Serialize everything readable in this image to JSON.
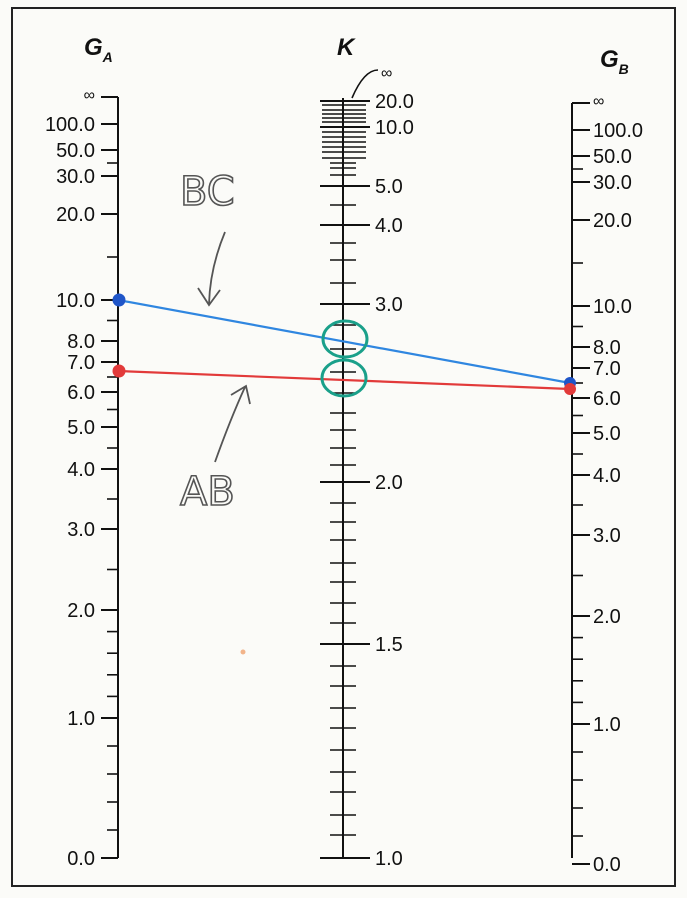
{
  "axes": {
    "ga": {
      "title": "G",
      "subscript": "A",
      "labels": [
        "∞",
        "100.0",
        "50.0",
        "30.0",
        "20.0",
        "10.0",
        "8.0",
        "7.0",
        "6.0",
        "5.0",
        "4.0",
        "3.0",
        "2.0",
        "1.0",
        "0.0"
      ]
    },
    "k": {
      "title": "K",
      "infinity_label": "∞",
      "labels": [
        "20.0",
        "10.0",
        "5.0",
        "4.0",
        "3.0",
        "2.0",
        "1.5",
        "1.0"
      ]
    },
    "gb": {
      "title": "G",
      "subscript": "B",
      "labels": [
        "∞",
        "100.0",
        "50.0",
        "30.0",
        "20.0",
        "10.0",
        "8.0",
        "7.0",
        "6.0",
        "5.0",
        "4.0",
        "3.0",
        "2.0",
        "1.0",
        "0.0"
      ]
    }
  },
  "annotations": {
    "bc_label": "BC",
    "ab_label": "AB"
  },
  "lines": [
    {
      "name": "BC",
      "ga": 10.0,
      "gb": 6.5,
      "color": "#2f86e0",
      "point_color": "#1f55c8"
    },
    {
      "name": "AB",
      "ga": 6.7,
      "gb": 6.3,
      "color": "#e23a3a",
      "point_color": "#e23a3a"
    }
  ],
  "colors": {
    "circle": "#1aa08a",
    "ink": "#111111",
    "pencil": "#555555"
  }
}
